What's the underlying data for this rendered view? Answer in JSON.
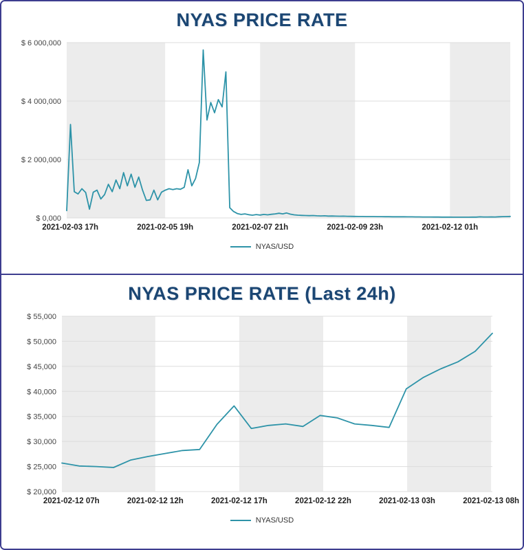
{
  "theme": {
    "panel_border": "#3d3d8f",
    "title_color": "#1b4673",
    "line_color": "#2d93a8",
    "band_gray": "#ececec",
    "grid_color": "#dcdcdc",
    "x_label_color": "#222222",
    "y_label_color": "#444444"
  },
  "chart_data": [
    {
      "type": "line",
      "title": "NYAS PRICE RATE",
      "legend": "NYAS/USD",
      "series_name": "NYAS/USD",
      "line_color": "#2d93a8",
      "ylim": [
        0,
        6000000
      ],
      "y_ticks": [
        {
          "label": "$ 6 000,000",
          "value": 6000000
        },
        {
          "label": "$ 4 000,000",
          "value": 4000000
        },
        {
          "label": "$ 2 000,000",
          "value": 2000000
        },
        {
          "label": "$ 0,000",
          "value": 0
        }
      ],
      "x_tick_labels": [
        "2021-02-03 17h",
        "2021-02-05 19h",
        "2021-02-07 21h",
        "2021-02-09 23h",
        "2021-02-12 01h"
      ],
      "values": [
        250000,
        3200000,
        900000,
        820000,
        1000000,
        870000,
        300000,
        880000,
        950000,
        650000,
        800000,
        1150000,
        900000,
        1300000,
        1000000,
        1550000,
        1100000,
        1500000,
        1050000,
        1400000,
        950000,
        600000,
        620000,
        950000,
        620000,
        880000,
        950000,
        1000000,
        970000,
        1000000,
        980000,
        1050000,
        1650000,
        1100000,
        1350000,
        1900000,
        5750000,
        3350000,
        3950000,
        3600000,
        4050000,
        3800000,
        5000000,
        350000,
        220000,
        150000,
        120000,
        140000,
        110000,
        95000,
        115000,
        100000,
        120000,
        105000,
        125000,
        140000,
        160000,
        140000,
        170000,
        130000,
        105000,
        95000,
        88000,
        82000,
        78000,
        82000,
        72000,
        68000,
        72000,
        64000,
        66000,
        62000,
        58000,
        62000,
        57000,
        53000,
        52000,
        50000,
        49000,
        48000,
        47000,
        46000,
        45000,
        44000,
        43000,
        42000,
        41000,
        40000,
        39500,
        39000,
        38000,
        37000,
        36000,
        35000,
        34000,
        33000,
        32000,
        31000,
        30000,
        29000,
        28000,
        27500,
        27000,
        26500,
        25700,
        25000,
        26300,
        27600,
        28400,
        37100,
        33200,
        33000,
        34700,
        33200,
        40500,
        44300,
        47800,
        51500
      ]
    },
    {
      "type": "line",
      "title": "NYAS PRICE RATE (Last 24h)",
      "legend": "NYAS/USD",
      "series_name": "NYAS/USD",
      "line_color": "#2d93a8",
      "ylim": [
        20000,
        55000
      ],
      "y_ticks": [
        {
          "label": "$ 55,000",
          "value": 55000
        },
        {
          "label": "$ 50,000",
          "value": 50000
        },
        {
          "label": "$ 45,000",
          "value": 45000
        },
        {
          "label": "$ 40,000",
          "value": 40000
        },
        {
          "label": "$ 35,000",
          "value": 35000
        },
        {
          "label": "$ 30,000",
          "value": 30000
        },
        {
          "label": "$ 25,000",
          "value": 25000
        },
        {
          "label": "$ 20,000",
          "value": 20000
        }
      ],
      "x_tick_labels": [
        "2021-02-12 07h",
        "2021-02-12 12h",
        "2021-02-12 17h",
        "2021-02-12 22h",
        "2021-02-13 03h",
        "2021-02-13 08h"
      ],
      "values": [
        25700,
        25100,
        25000,
        24800,
        26300,
        27000,
        27600,
        28200,
        28400,
        33400,
        37100,
        32600,
        33200,
        33500,
        33000,
        35200,
        34700,
        33500,
        33200,
        32800,
        40500,
        42800,
        44500,
        45900,
        48000,
        51600
      ]
    }
  ]
}
